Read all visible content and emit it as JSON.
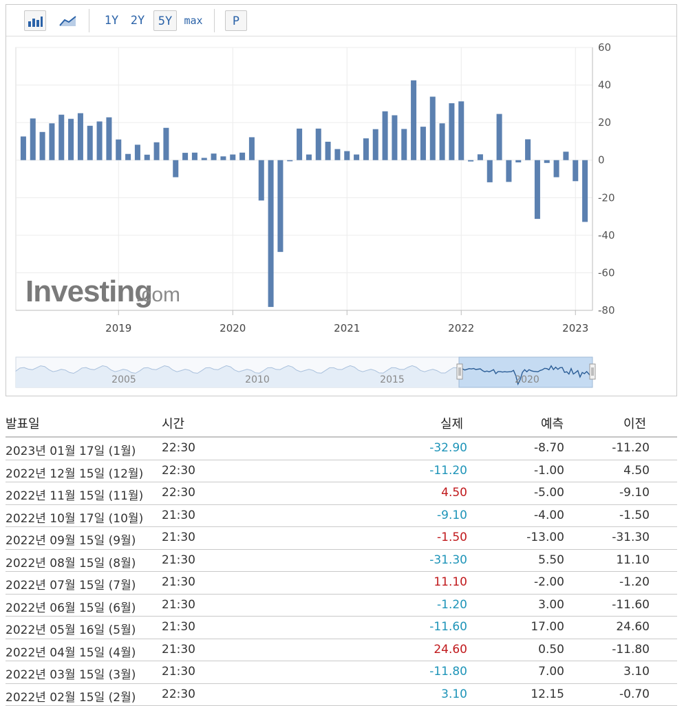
{
  "toolbar": {
    "ranges": [
      "1Y",
      "2Y",
      "5Y",
      "max"
    ],
    "active_range": "5Y",
    "p_label": "P"
  },
  "watermark": {
    "brand": "Investing",
    "suffix": ".com"
  },
  "chart_data": {
    "type": "bar",
    "color": "#5b80b0",
    "ylim": [
      -80,
      60
    ],
    "y_ticks": [
      60,
      40,
      20,
      0,
      -20,
      -40,
      -60,
      -80
    ],
    "x_tick_labels": [
      "2019",
      "2020",
      "2021",
      "2022",
      "2023"
    ],
    "values": [
      12.6,
      22.2,
      15.0,
      19.6,
      24.2,
      22.0,
      25.0,
      18.3,
      20.6,
      22.8,
      11.0,
      3.3,
      8.2,
      2.9,
      9.5,
      17.2,
      -9.1,
      3.9,
      4.0,
      1.2,
      3.5,
      2.0,
      3.0,
      4.0,
      12.2,
      -21.5,
      -78.2,
      -48.9,
      -0.6,
      16.8,
      3.0,
      16.8,
      9.8,
      5.9,
      4.8,
      3.0,
      11.6,
      16.5,
      26.0,
      23.9,
      16.6,
      42.5,
      17.8,
      33.8,
      19.6,
      30.3,
      31.3,
      -0.7,
      3.1,
      -11.8,
      24.6,
      -11.6,
      -1.2,
      11.1,
      -31.3,
      -1.5,
      -9.1,
      4.5,
      -11.2,
      -32.9
    ],
    "navigator_labels": [
      "2005",
      "2010",
      "2015",
      "2020"
    ]
  },
  "table": {
    "headers": {
      "date": "발표일",
      "time": "시간",
      "actual": "실제",
      "forecast": "예측",
      "previous": "이전"
    },
    "rows": [
      {
        "date": "2023년 01월 17일 (1월)",
        "time": "22:30",
        "actual": "-32.90",
        "actual_dir": "neg",
        "forecast": "-8.70",
        "previous": "-11.20"
      },
      {
        "date": "2022년 12월 15일 (12월)",
        "time": "22:30",
        "actual": "-11.20",
        "actual_dir": "neg",
        "forecast": "-1.00",
        "previous": "4.50"
      },
      {
        "date": "2022년 11월 15일 (11월)",
        "time": "22:30",
        "actual": "4.50",
        "actual_dir": "pos",
        "forecast": "-5.00",
        "previous": "-9.10"
      },
      {
        "date": "2022년 10월 17일 (10월)",
        "time": "21:30",
        "actual": "-9.10",
        "actual_dir": "neg",
        "forecast": "-4.00",
        "previous": "-1.50"
      },
      {
        "date": "2022년 09월 15일 (9월)",
        "time": "21:30",
        "actual": "-1.50",
        "actual_dir": "pos",
        "forecast": "-13.00",
        "previous": "-31.30"
      },
      {
        "date": "2022년 08월 15일 (8월)",
        "time": "21:30",
        "actual": "-31.30",
        "actual_dir": "neg",
        "forecast": "5.50",
        "previous": "11.10"
      },
      {
        "date": "2022년 07월 15일 (7월)",
        "time": "21:30",
        "actual": "11.10",
        "actual_dir": "pos",
        "forecast": "-2.00",
        "previous": "-1.20"
      },
      {
        "date": "2022년 06월 15일 (6월)",
        "time": "21:30",
        "actual": "-1.20",
        "actual_dir": "neg",
        "forecast": "3.00",
        "previous": "-11.60"
      },
      {
        "date": "2022년 05월 16일 (5월)",
        "time": "21:30",
        "actual": "-11.60",
        "actual_dir": "neg",
        "forecast": "17.00",
        "previous": "24.60"
      },
      {
        "date": "2022년 04월 15일 (4월)",
        "time": "21:30",
        "actual": "24.60",
        "actual_dir": "pos",
        "forecast": "0.50",
        "previous": "-11.80"
      },
      {
        "date": "2022년 03월 15일 (3월)",
        "time": "21:30",
        "actual": "-11.80",
        "actual_dir": "neg",
        "forecast": "7.00",
        "previous": "3.10"
      },
      {
        "date": "2022년 02월 15일 (2월)",
        "time": "22:30",
        "actual": "3.10",
        "actual_dir": "neg",
        "forecast": "12.15",
        "previous": "-0.70"
      }
    ]
  }
}
